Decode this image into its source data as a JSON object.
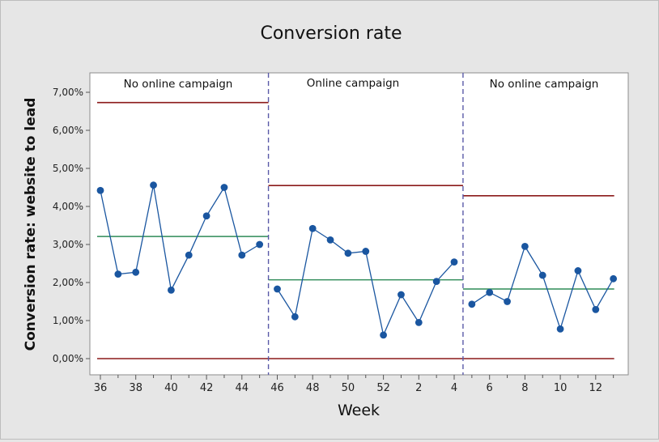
{
  "chart_data": {
    "type": "line",
    "title": "Conversion rate",
    "xlabel": "Week",
    "ylabel": "Conversion rate: website to lead",
    "ylim": [
      0,
      0.075
    ],
    "y_ticks": [
      "0,00%",
      "1,00%",
      "2,00%",
      "3,00%",
      "4,00%",
      "5,00%",
      "6,00%",
      "7,00%"
    ],
    "x_tick_labels": [
      "36",
      "38",
      "40",
      "42",
      "44",
      "46",
      "48",
      "50",
      "52",
      "2",
      "4",
      "6",
      "8",
      "10",
      "12"
    ],
    "x": [
      "36",
      "37",
      "38",
      "39",
      "40",
      "41",
      "42",
      "43",
      "44",
      "45",
      "46",
      "47",
      "48",
      "49",
      "50",
      "51",
      "52",
      "1",
      "2",
      "3",
      "4",
      "5",
      "6",
      "7",
      "8",
      "9",
      "10",
      "11",
      "12",
      "13"
    ],
    "series": [
      {
        "values": [
          0.0442,
          0.0222,
          0.0227,
          0.0456,
          0.018,
          0.0272,
          0.0375,
          0.045,
          0.0272,
          0.03,
          0.0183,
          0.011,
          0.0342,
          0.0312,
          0.0277,
          0.0282,
          0.0062,
          0.0168,
          0.0095,
          0.0203,
          0.0254,
          0.0143,
          0.0174,
          0.015,
          0.0295,
          0.0219,
          0.0078,
          0.0231,
          0.0129,
          0.021
        ]
      }
    ],
    "phases": [
      {
        "label": "No online campaign",
        "weeks": [
          "36",
          "45"
        ],
        "center": 0.0321,
        "ucl": 0.0673,
        "lcl": 0.0
      },
      {
        "label": "Online campaign",
        "weeks": [
          "46",
          "4"
        ],
        "center": 0.0207,
        "ucl": 0.0455,
        "lcl": 0.0
      },
      {
        "label": "No online campaign",
        "weeks": [
          "5",
          "13"
        ],
        "center": 0.0183,
        "ucl": 0.0428,
        "lcl": 0.0
      }
    ],
    "grid": false,
    "colors": {
      "series": "#1a56a0",
      "center_line": "#2e8b57",
      "limit_line": "#8b1a1a",
      "divider": "#5a5aa8"
    }
  }
}
